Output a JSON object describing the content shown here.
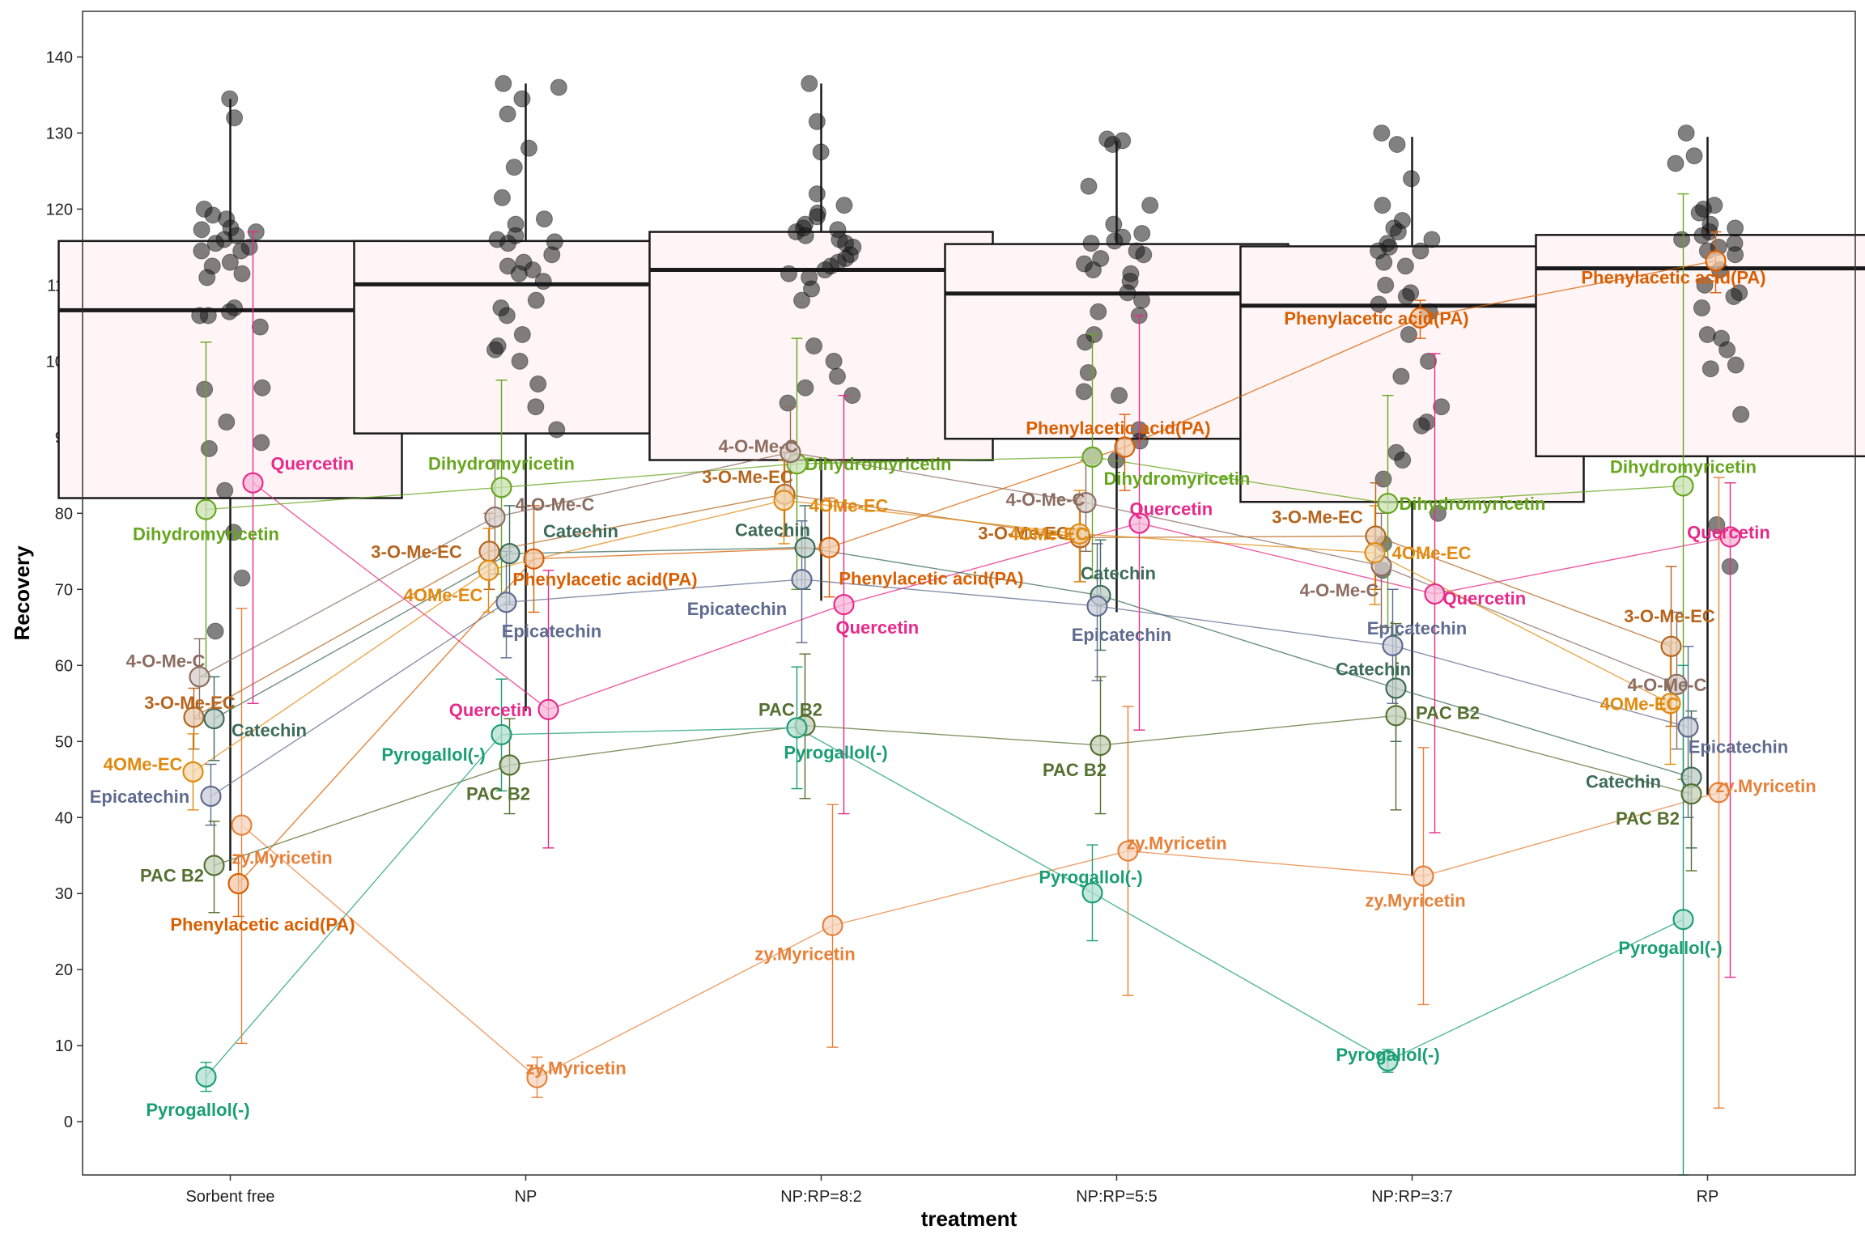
{
  "chart_data": {
    "type": "scatter",
    "xlabel": "treatment",
    "ylabel": "Recovery",
    "ylim": [
      -7,
      146
    ],
    "yticks": [
      0,
      10,
      20,
      30,
      40,
      50,
      60,
      70,
      80,
      90,
      100,
      110,
      120,
      130,
      140
    ],
    "grid": false,
    "legend": "none",
    "categories": [
      "Sorbent free",
      "NP",
      "NP:RP=8:2",
      "NP:RP=5:5",
      "NP:RP=3:7",
      "RP"
    ],
    "boxplot": [
      {
        "category": "Sorbent free",
        "q1": 82,
        "median": 106.7,
        "q3": 115.8,
        "whisker_low": 33,
        "whisker_high": 134.5
      },
      {
        "category": "NP",
        "q1": 90.5,
        "median": 110.1,
        "q3": 115.8,
        "whisker_low": 54,
        "whisker_high": 136.5
      },
      {
        "category": "NP:RP=8:2",
        "q1": 87,
        "median": 112,
        "q3": 117,
        "whisker_low": 68.5,
        "whisker_high": 136.5
      },
      {
        "category": "NP:RP=5:5",
        "q1": 89.8,
        "median": 108.9,
        "q3": 115.4,
        "whisker_low": 67,
        "whisker_high": 129
      },
      {
        "category": "NP:RP=3:7",
        "q1": 81.5,
        "median": 107.3,
        "q3": 115.1,
        "whisker_low": 32.3,
        "whisker_high": 129.5
      },
      {
        "category": "RP",
        "q1": 87.5,
        "median": 112.2,
        "q3": 116.6,
        "whisker_low": 43,
        "whisker_high": 129.5
      }
    ],
    "jitter_points": [
      [
        134.5,
        132,
        120,
        119.2,
        118.7,
        117.5,
        117.3,
        117,
        116.5,
        116,
        115.5,
        115,
        114.5,
        114.5,
        113,
        112.5,
        111.5,
        111,
        107,
        106.5,
        106,
        106,
        104.5,
        96.5,
        96.3,
        92,
        89.3,
        88.5,
        83,
        77.5,
        71.5,
        64.5
      ],
      [
        136.5,
        136,
        134.5,
        132.5,
        128,
        125.5,
        121.5,
        118.7,
        118,
        116.5,
        116,
        115.7,
        115.5,
        114,
        113,
        112.5,
        112,
        111.5,
        110.5,
        108,
        107,
        106,
        103.5,
        102,
        101.5,
        100,
        97,
        94,
        91
      ],
      [
        136.5,
        131.5,
        127.5,
        122,
        120.5,
        119.5,
        119,
        118,
        117.5,
        117.3,
        117,
        116.5,
        116,
        115.5,
        115,
        114,
        113.5,
        113,
        112.5,
        112,
        111.5,
        111,
        109.5,
        108,
        102,
        100,
        98,
        96.5,
        95.5,
        94.5
      ],
      [
        129.2,
        129,
        128.5,
        123,
        120.5,
        118,
        116.8,
        116.3,
        115.8,
        115.5,
        114.5,
        114,
        113.5,
        112.8,
        112,
        111.5,
        110.5,
        109,
        108,
        106.5,
        106,
        103.5,
        102.5,
        98.5,
        96,
        95.5,
        91,
        89.5,
        87.5,
        87
      ],
      [
        130,
        128.5,
        124,
        120.5,
        118.5,
        117.5,
        117,
        116,
        115.5,
        115,
        114.5,
        114.5,
        113,
        112.5,
        110,
        109,
        108.5,
        107.5,
        106.5,
        103.5,
        100,
        98,
        94,
        92,
        91.5,
        88,
        87,
        84.5,
        80,
        76,
        72.5
      ],
      [
        130,
        127,
        126,
        120.5,
        120,
        119.5,
        118,
        117.5,
        117,
        116.5,
        116,
        115.5,
        115,
        114.5,
        114,
        112,
        110,
        109,
        108.5,
        107,
        103.5,
        103,
        101.5,
        99.5,
        99,
        93,
        78.5,
        73
      ]
    ],
    "series": [
      {
        "name": "Quercetin",
        "color": "#e7298a",
        "values": [
          84,
          54.2,
          68,
          78.7,
          69.4,
          76.9
        ],
        "err_low": [
          55,
          36,
          40.5,
          51.5,
          38,
          19
        ],
        "err_high": [
          117,
          72.5,
          95.5,
          106,
          101,
          84
        ]
      },
      {
        "name": "Dihydromyricetin",
        "color": "#66a61e",
        "values": [
          80.5,
          83.4,
          86.5,
          87.4,
          81.3,
          83.6
        ],
        "err_low": [
          58.5,
          69,
          70,
          71.5,
          65,
          45
        ],
        "err_high": [
          102.5,
          97.5,
          103,
          103.5,
          95.5,
          122
        ]
      },
      {
        "name": "4-O-Me-C",
        "color": "#8c6d62",
        "values": [
          58.5,
          79.5,
          88,
          81.4,
          73.1,
          57.5
        ],
        "err_low": [
          53,
          72,
          82,
          75,
          65,
          49
        ],
        "err_high": [
          63.5,
          87,
          94,
          87,
          80,
          67
        ]
      },
      {
        "name": "3-O-Me-EC",
        "color": "#b5651d",
        "values": [
          53.2,
          75,
          82.5,
          76.8,
          77,
          62.5
        ],
        "err_low": [
          49,
          70,
          77,
          71,
          70,
          52
        ],
        "err_high": [
          57,
          80,
          88,
          82,
          84,
          73
        ]
      },
      {
        "name": "Catechin",
        "color": "#3d6b5a",
        "values": [
          53,
          74.7,
          75.5,
          69.2,
          57,
          45.3
        ],
        "err_low": [
          47.5,
          68,
          70,
          62,
          50,
          36
        ],
        "err_high": [
          58.5,
          81,
          81,
          76.5,
          64,
          54
        ]
      },
      {
        "name": "4OMe-EC",
        "color": "#e08a10",
        "values": [
          46,
          72.5,
          81.7,
          77.3,
          74.8,
          55
        ],
        "err_low": [
          41,
          67,
          76,
          71,
          68,
          47
        ],
        "err_high": [
          51,
          78,
          87,
          83,
          81,
          63
        ]
      },
      {
        "name": "Epicatechin",
        "color": "#5f6b8f",
        "values": [
          42.8,
          68.3,
          71.3,
          67.8,
          62.6,
          51.9
        ],
        "err_low": [
          39,
          61,
          63,
          58,
          55,
          40
        ],
        "err_high": [
          47,
          75,
          79,
          76,
          70,
          62.5
        ]
      },
      {
        "name": "Phenylacetic acid(PA)",
        "color": "#d95f02",
        "values": [
          31.3,
          74,
          75.5,
          88.7,
          105.7,
          113.2
        ],
        "err_low": [
          27,
          67,
          69,
          83,
          103,
          109
        ],
        "err_high": [
          35,
          81,
          82,
          93,
          108,
          117
        ]
      },
      {
        "name": "zy.Myricetin",
        "color": "#e6813a",
        "values": [
          39,
          5.8,
          25.8,
          35.6,
          32.3,
          43.3
        ],
        "err_low": [
          10.3,
          3.2,
          9.8,
          16.6,
          15.4,
          1.8
        ],
        "err_high": [
          67.5,
          8.5,
          41.7,
          54.6,
          49.2,
          84.7
        ]
      },
      {
        "name": "PAC B2",
        "color": "#557030",
        "values": [
          33.7,
          46.9,
          52.1,
          49.5,
          53.4,
          43.1
        ],
        "err_low": [
          27.5,
          40.5,
          42.5,
          40.5,
          41,
          33
        ],
        "err_high": [
          39.5,
          53,
          61.5,
          58.5,
          65.5,
          53
        ]
      },
      {
        "name": "Pyrogallol(-)",
        "color": "#1b9e77",
        "values": [
          5.9,
          50.9,
          51.8,
          30.1,
          8,
          26.6
        ],
        "err_low": [
          4,
          43.5,
          43.8,
          23.8,
          6.5,
          -7
        ],
        "err_high": [
          7.8,
          58.2,
          59.8,
          36.4,
          9.5,
          60
        ]
      }
    ]
  }
}
